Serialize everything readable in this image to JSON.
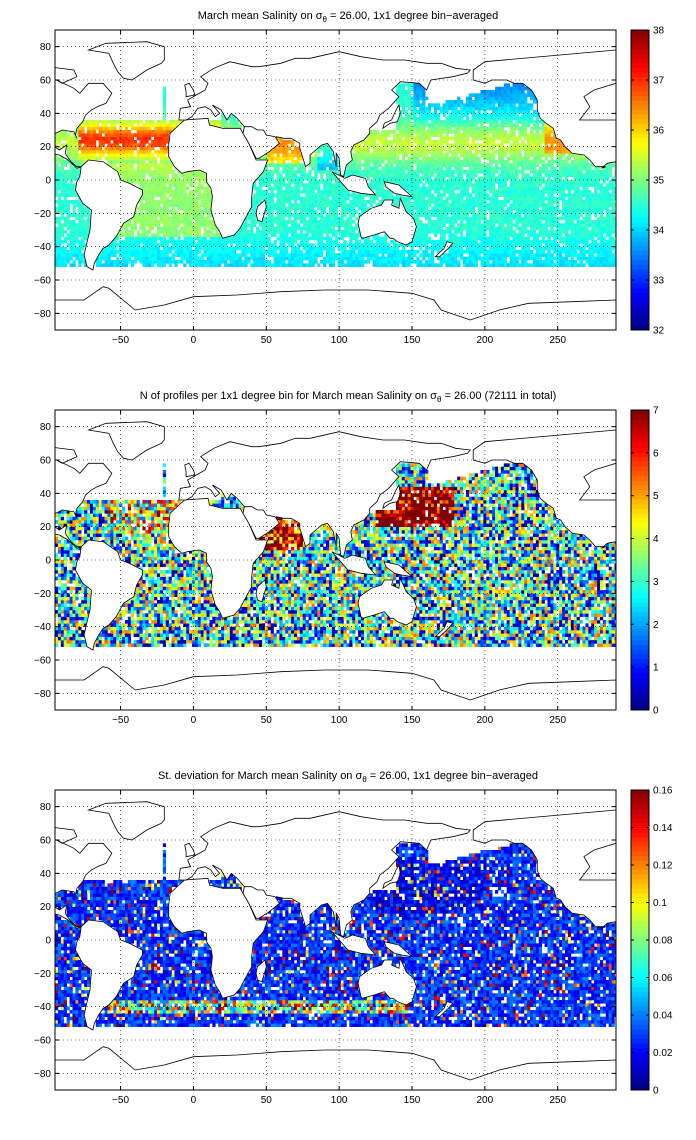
{
  "chart_data": [
    {
      "type": "heatmap",
      "title_prefix": "March mean Salinity on ",
      "title_symbol": "σ",
      "title_subscript": "θ",
      "title_suffix": " = 26.00, 1x1 degree bin−averaged",
      "x_ticks": [
        "−50",
        "0",
        "50",
        "100",
        "150",
        "200",
        "250"
      ],
      "x_tick_values": [
        -50,
        0,
        50,
        100,
        150,
        200,
        250
      ],
      "y_ticks": [
        "80",
        "60",
        "40",
        "20",
        "0",
        "−20",
        "−40",
        "−60",
        "−80"
      ],
      "y_tick_values": [
        80,
        60,
        40,
        20,
        0,
        -20,
        -40,
        -60,
        -80
      ],
      "xlim": [
        -95,
        290
      ],
      "ylim": [
        -90,
        90
      ],
      "grid": true,
      "colorbar_ticks": [
        "38",
        "37",
        "36",
        "35",
        "34",
        "33",
        "32"
      ],
      "colorbar_values": [
        38,
        37,
        36,
        35,
        34,
        33,
        32
      ],
      "clim": [
        32,
        38
      ],
      "colormap": "jet",
      "field": "salinity"
    },
    {
      "type": "heatmap",
      "title_prefix": "N of profiles per 1x1 degree bin for March mean Salinity on ",
      "title_symbol": "σ",
      "title_subscript": "θ",
      "title_suffix": " = 26.00 (72111 in total)",
      "x_ticks": [
        "−50",
        "0",
        "50",
        "100",
        "150",
        "200",
        "250"
      ],
      "x_tick_values": [
        -50,
        0,
        50,
        100,
        150,
        200,
        250
      ],
      "y_ticks": [
        "80",
        "60",
        "40",
        "20",
        "0",
        "−20",
        "−40",
        "−60",
        "−80"
      ],
      "y_tick_values": [
        80,
        60,
        40,
        20,
        0,
        -20,
        -40,
        -60,
        -80
      ],
      "xlim": [
        -95,
        290
      ],
      "ylim": [
        -90,
        90
      ],
      "grid": true,
      "colorbar_ticks": [
        "7",
        "6",
        "5",
        "4",
        "3",
        "2",
        "1",
        "0"
      ],
      "colorbar_values": [
        7,
        6,
        5,
        4,
        3,
        2,
        1,
        0
      ],
      "clim": [
        0,
        7
      ],
      "colormap": "jet",
      "field": "count"
    },
    {
      "type": "heatmap",
      "title_prefix": "St. deviation for March mean Salinity on ",
      "title_symbol": "σ",
      "title_subscript": "θ",
      "title_suffix": " = 26.00, 1x1 degree bin−averaged",
      "x_ticks": [
        "−50",
        "0",
        "50",
        "100",
        "150",
        "200",
        "250"
      ],
      "x_tick_values": [
        -50,
        0,
        50,
        100,
        150,
        200,
        250
      ],
      "y_ticks": [
        "80",
        "60",
        "40",
        "20",
        "0",
        "−20",
        "−40",
        "−60",
        "−80"
      ],
      "y_tick_values": [
        80,
        60,
        40,
        20,
        0,
        -20,
        -40,
        -60,
        -80
      ],
      "xlim": [
        -95,
        290
      ],
      "ylim": [
        -90,
        90
      ],
      "grid": true,
      "colorbar_ticks": [
        "0.16",
        "0.14",
        "0.12",
        "0.1",
        "0.08",
        "0.06",
        "0.04",
        "0.02",
        "0"
      ],
      "colorbar_values": [
        0.16,
        0.14,
        0.12,
        0.1,
        0.08,
        0.06,
        0.04,
        0.02,
        0
      ],
      "clim": [
        0,
        0.16
      ],
      "colormap": "jet",
      "field": "stdev"
    }
  ]
}
